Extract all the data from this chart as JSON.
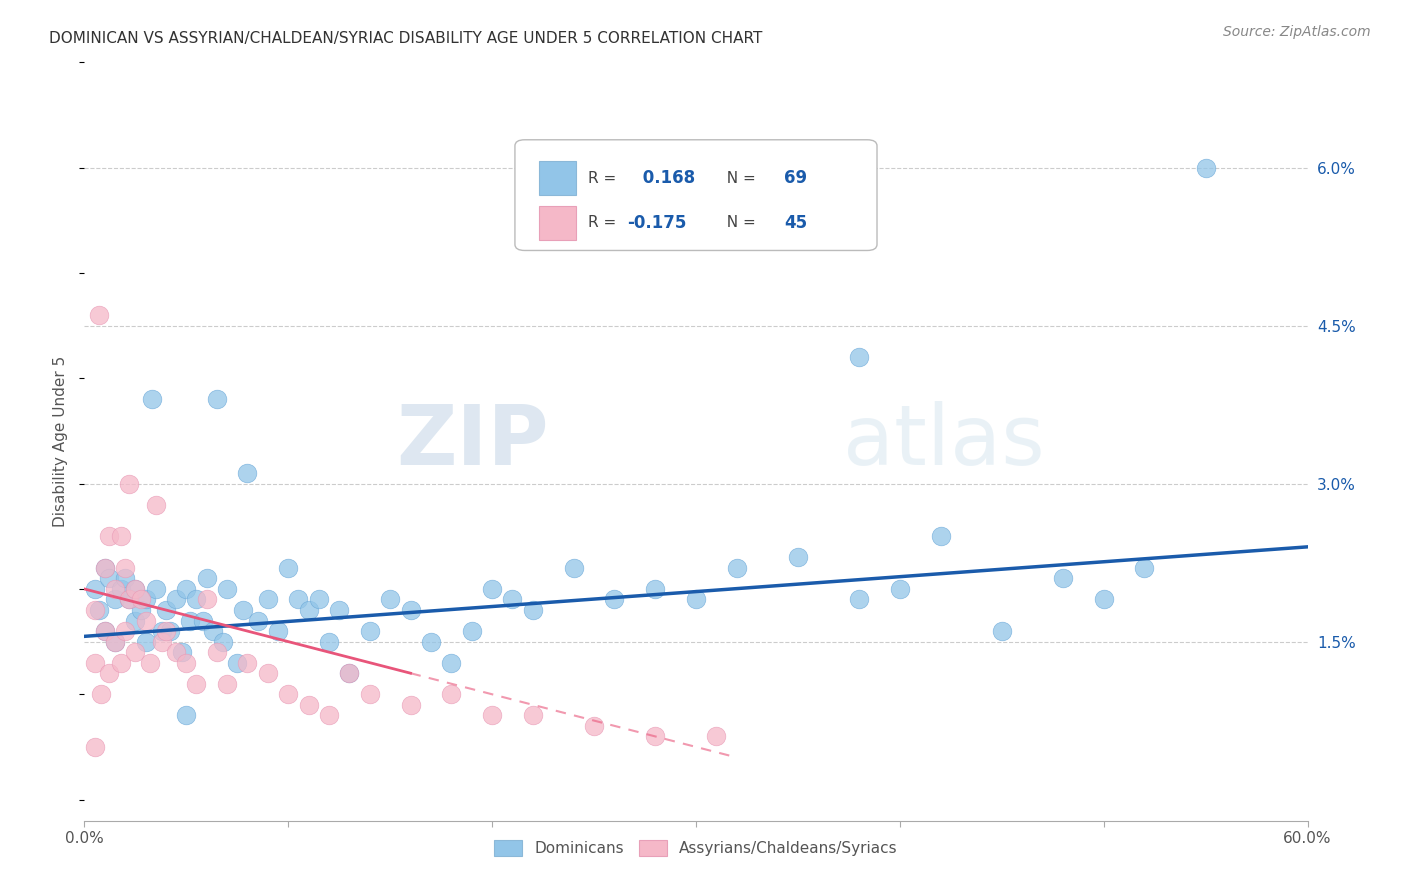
{
  "title": "DOMINICAN VS ASSYRIAN/CHALDEAN/SYRIAC DISABILITY AGE UNDER 5 CORRELATION CHART",
  "source": "Source: ZipAtlas.com",
  "ylabel": "Disability Age Under 5",
  "xlim": [
    0.0,
    0.6
  ],
  "ylim": [
    -0.002,
    0.07
  ],
  "xticks": [
    0.0,
    0.1,
    0.2,
    0.3,
    0.4,
    0.5,
    0.6
  ],
  "xticklabels": [
    "0.0%",
    "",
    "",
    "",
    "",
    "",
    "60.0%"
  ],
  "yticks_right": [
    0.015,
    0.03,
    0.045,
    0.06
  ],
  "ytick_right_labels": [
    "1.5%",
    "3.0%",
    "4.5%",
    "6.0%"
  ],
  "r_blue": 0.168,
  "n_blue": 69,
  "r_pink": -0.175,
  "n_pink": 45,
  "blue_color": "#92C5E8",
  "pink_color": "#F5B8C8",
  "trend_blue_color": "#1A5BAB",
  "trend_pink_color": "#E8557A",
  "legend_dominicans": "Dominicans",
  "legend_assyrians": "Assyrians/Chaldeans/Syriacs",
  "watermark_zip": "ZIP",
  "watermark_atlas": "atlas",
  "blue_x": [
    0.005,
    0.007,
    0.01,
    0.01,
    0.012,
    0.015,
    0.015,
    0.018,
    0.02,
    0.022,
    0.025,
    0.025,
    0.028,
    0.03,
    0.03,
    0.033,
    0.035,
    0.038,
    0.04,
    0.042,
    0.045,
    0.048,
    0.05,
    0.052,
    0.055,
    0.058,
    0.06,
    0.063,
    0.065,
    0.068,
    0.07,
    0.075,
    0.078,
    0.08,
    0.085,
    0.09,
    0.095,
    0.1,
    0.105,
    0.11,
    0.115,
    0.12,
    0.125,
    0.13,
    0.14,
    0.15,
    0.16,
    0.17,
    0.18,
    0.19,
    0.2,
    0.21,
    0.22,
    0.24,
    0.26,
    0.28,
    0.3,
    0.32,
    0.35,
    0.38,
    0.4,
    0.42,
    0.45,
    0.48,
    0.5,
    0.52,
    0.55,
    0.38,
    0.05
  ],
  "blue_y": [
    0.02,
    0.018,
    0.022,
    0.016,
    0.021,
    0.019,
    0.015,
    0.02,
    0.021,
    0.019,
    0.02,
    0.017,
    0.018,
    0.019,
    0.015,
    0.038,
    0.02,
    0.016,
    0.018,
    0.016,
    0.019,
    0.014,
    0.02,
    0.017,
    0.019,
    0.017,
    0.021,
    0.016,
    0.038,
    0.015,
    0.02,
    0.013,
    0.018,
    0.031,
    0.017,
    0.019,
    0.016,
    0.022,
    0.019,
    0.018,
    0.019,
    0.015,
    0.018,
    0.012,
    0.016,
    0.019,
    0.018,
    0.015,
    0.013,
    0.016,
    0.02,
    0.019,
    0.018,
    0.022,
    0.019,
    0.02,
    0.019,
    0.022,
    0.023,
    0.019,
    0.02,
    0.025,
    0.016,
    0.021,
    0.019,
    0.022,
    0.06,
    0.042,
    0.008
  ],
  "pink_x": [
    0.005,
    0.005,
    0.007,
    0.008,
    0.01,
    0.01,
    0.012,
    0.012,
    0.015,
    0.015,
    0.018,
    0.018,
    0.02,
    0.02,
    0.022,
    0.022,
    0.025,
    0.025,
    0.028,
    0.03,
    0.032,
    0.035,
    0.038,
    0.04,
    0.045,
    0.05,
    0.055,
    0.06,
    0.065,
    0.07,
    0.08,
    0.09,
    0.1,
    0.11,
    0.12,
    0.13,
    0.14,
    0.16,
    0.18,
    0.2,
    0.22,
    0.25,
    0.28,
    0.31,
    0.005
  ],
  "pink_y": [
    0.018,
    0.013,
    0.046,
    0.01,
    0.022,
    0.016,
    0.025,
    0.012,
    0.02,
    0.015,
    0.025,
    0.013,
    0.022,
    0.016,
    0.03,
    0.019,
    0.02,
    0.014,
    0.019,
    0.017,
    0.013,
    0.028,
    0.015,
    0.016,
    0.014,
    0.013,
    0.011,
    0.019,
    0.014,
    0.011,
    0.013,
    0.012,
    0.01,
    0.009,
    0.008,
    0.012,
    0.01,
    0.009,
    0.01,
    0.008,
    0.008,
    0.007,
    0.006,
    0.006,
    0.005
  ],
  "trend_blue_x_start": 0.0,
  "trend_blue_x_end": 0.6,
  "trend_blue_y_start": 0.0155,
  "trend_blue_y_end": 0.024,
  "trend_pink_x_start": 0.0,
  "trend_pink_x_end": 0.32,
  "trend_pink_y_start": 0.02,
  "trend_pink_y_end": 0.004,
  "trend_pink_solid_end": 0.16,
  "trend_pink_dashed_start": 0.16
}
